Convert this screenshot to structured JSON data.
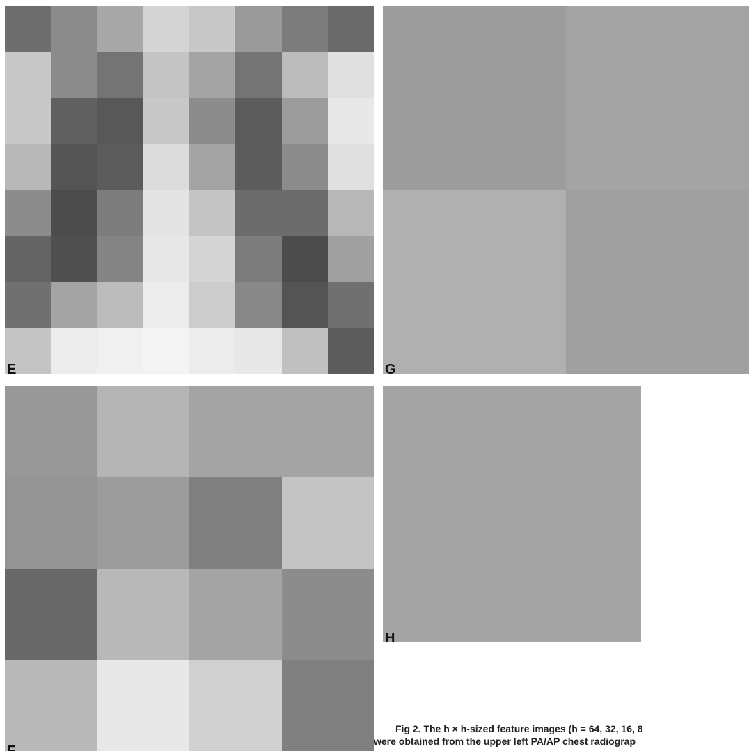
{
  "panels": [
    {
      "label": "E"
    },
    {
      "label": "G"
    },
    {
      "label": "F"
    },
    {
      "label": "H"
    }
  ],
  "caption": [
    "Fig 2. The h × h-sized feature images (h = 64, 32, 16, 8",
    "were obtained from the upper left PA/AP chest radiograp"
  ]
}
